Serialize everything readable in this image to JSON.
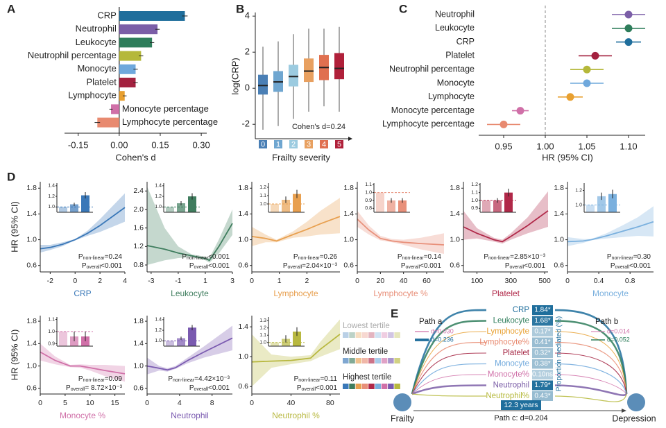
{
  "chart_data": [
    {
      "type": "hbar",
      "panel": "A",
      "xlabel": "Cohen's d",
      "categories": [
        "CRP",
        "Neutrophil",
        "Leukocyte",
        "Neutrophil percentage",
        "Monocyte",
        "Platelet",
        "Lymphocyte",
        "Monocyte percentage",
        "Lymphocyte percentage"
      ],
      "values": [
        0.24,
        0.14,
        0.12,
        0.08,
        0.06,
        0.06,
        0.02,
        -0.03,
        -0.08
      ],
      "errors": [
        0.01,
        0.008,
        0.008,
        0.008,
        0.008,
        0.008,
        0.007,
        0.006,
        0.01
      ],
      "colors": [
        "#1f6e9c",
        "#7b5ea7",
        "#2e7d5b",
        "#b5b83a",
        "#6fa8dc",
        "#a3213f",
        "#e8a030",
        "#d070a8",
        "#e88a70"
      ],
      "xlim": [
        -0.2,
        0.32
      ],
      "xticks": [
        -0.15,
        {
          "value": 0,
          "label": "0.00"
        },
        0.15,
        {
          "value": 0.3,
          "label": "0.30"
        }
      ]
    },
    {
      "type": "box",
      "panel": "B",
      "ylabel": "log(CRP)",
      "xlabel": "Frailty severity",
      "annotation": "Cohen's d=0.24",
      "categories": [
        "0",
        "1",
        "2",
        "3",
        "4",
        "5"
      ],
      "colors": [
        "#4a7fb5",
        "#6fa6d0",
        "#9ccbe0",
        "#e8a060",
        "#e07050",
        "#b0203a"
      ],
      "q1": [
        -0.35,
        -0.2,
        0.1,
        0.35,
        0.45,
        0.5
      ],
      "median": [
        0.15,
        0.35,
        0.65,
        0.95,
        1.15,
        1.1
      ],
      "q3": [
        0.75,
        0.95,
        1.3,
        1.65,
        1.85,
        1.95
      ],
      "whisker_low": [
        -2.3,
        -2.1,
        -1.7,
        -1.3,
        -1.0,
        -1.3
      ],
      "whisker_high": [
        2.3,
        2.6,
        3.0,
        3.3,
        3.3,
        3.4
      ],
      "ylim": [
        -2.8,
        4.2
      ],
      "yticks": [
        -2,
        0,
        2,
        4
      ]
    },
    {
      "type": "forest",
      "panel": "C",
      "xlabel": "HR (95% CI)",
      "categories": [
        "Neutrophil",
        "Leukocyte",
        "CRP",
        "Platelet",
        "Neutrophil percentage",
        "Monocyte",
        "Lymphocyte",
        "Monocyte percentage",
        "Lymphocyte percentage"
      ],
      "values": [
        1.1,
        1.1,
        1.1,
        1.06,
        1.05,
        1.05,
        1.03,
        0.97,
        0.95
      ],
      "lower": [
        1.08,
        1.08,
        1.085,
        1.04,
        1.03,
        1.03,
        1.015,
        0.96,
        0.93
      ],
      "upper": [
        1.12,
        1.12,
        1.115,
        1.08,
        1.07,
        1.07,
        1.045,
        0.98,
        0.97
      ],
      "colors": [
        "#7b5ea7",
        "#2e7d5b",
        "#1f6e9c",
        "#a3213f",
        "#b5b83a",
        "#6fa8dc",
        "#e8a030",
        "#d070a8",
        "#e88a70"
      ],
      "refline": 1,
      "xlim": [
        0.92,
        1.12
      ],
      "xticks": [
        0.95,
        {
          "value": 1,
          "label": "1.00"
        },
        {
          "value": 1.05,
          "label": "1.05"
        },
        {
          "value": 1.1,
          "label": "1.10"
        }
      ]
    },
    {
      "type": "spline",
      "panel": "D",
      "ylabel": "HR (95% CI)",
      "xlabel": "CRP",
      "color": "#3a78b8",
      "x": [
        -2.8,
        -2,
        -1,
        0,
        1,
        2,
        3,
        4
      ],
      "values": [
        0.86,
        0.88,
        0.93,
        1.0,
        1.1,
        1.22,
        1.36,
        1.5
      ],
      "lower": [
        0.8,
        0.84,
        0.9,
        0.99,
        1.06,
        1.12,
        1.2,
        1.28
      ],
      "upper": [
        0.92,
        0.92,
        0.96,
        1.01,
        1.14,
        1.32,
        1.52,
        1.72
      ],
      "xlim": [
        -2.8,
        4
      ],
      "xticks": [
        -2,
        0,
        2,
        4
      ],
      "ylim": [
        0.5,
        1.9
      ],
      "yticks": [
        0.6,
        {
          "value": 1,
          "label": "1.0"
        },
        1.4,
        1.8
      ],
      "p_nonlinear": "=0.24",
      "p_overall": "<0.001",
      "inset": {
        "values": [
          1.0,
          1.05,
          1.22
        ],
        "errors": [
          0,
          0.03,
          0.06
        ],
        "ylim": [
          0.9,
          1.45
        ],
        "yticks": [
          {
            "value": 1,
            "label": "1.0"
          },
          1.2,
          1.4
        ],
        "refline": 1
      }
    },
    {
      "type": "spline",
      "xlabel": "Leukocyte",
      "color": "#3f7d5e",
      "x": [
        -3.3,
        -2,
        -1,
        0,
        1,
        1.3,
        2,
        3
      ],
      "values": [
        1.22,
        1.14,
        1.06,
        1.0,
        0.94,
        0.9,
        1.2,
        1.7
      ],
      "lower": [
        0.8,
        0.9,
        0.95,
        0.97,
        0.9,
        0.85,
        1.05,
        1.45
      ],
      "upper": [
        2.5,
        1.6,
        1.2,
        1.03,
        0.98,
        0.95,
        1.35,
        2.0
      ],
      "xlim": [
        -3.3,
        3
      ],
      "xticks": [
        -3,
        -1,
        1,
        3
      ],
      "ylim": [
        0.65,
        2.6
      ],
      "yticks": [
        0.8,
        1.2,
        1.6,
        {
          "value": 2,
          "label": "2.0"
        },
        2.4
      ],
      "p_nonlinear": "<0.001",
      "p_overall": "<0.001",
      "inset": {
        "values": [
          1.0,
          1.07,
          1.2
        ],
        "errors": [
          0,
          0.04,
          0.06
        ],
        "ylim": [
          0.9,
          1.45
        ],
        "yticks": [
          {
            "value": 1,
            "label": "1.0"
          },
          1.2,
          1.4
        ],
        "refline": 1
      }
    },
    {
      "type": "spline",
      "xlabel": "Lymphocyte",
      "color": "#e8a050",
      "x": [
        0,
        0.5,
        0.9,
        1.5,
        2,
        2.5,
        3.2
      ],
      "values": [
        1.05,
        1.02,
        0.98,
        1.08,
        1.16,
        1.25,
        1.36
      ],
      "lower": [
        0.9,
        0.96,
        0.96,
        1.03,
        1.05,
        1.08,
        1.1
      ],
      "upper": [
        1.2,
        1.08,
        1.0,
        1.13,
        1.28,
        1.45,
        1.65
      ],
      "xlim": [
        0,
        3.2
      ],
      "xticks": [
        0,
        1,
        2
      ],
      "ylim": [
        0.5,
        1.9
      ],
      "yticks": [
        0.6,
        {
          "value": 1,
          "label": "1.0"
        },
        1.4,
        1.8
      ],
      "p_nonlinear": "=0.26",
      "p_overall": "=2.04×10⁻³",
      "inset": {
        "values": [
          1.0,
          1.05,
          1.12
        ],
        "errors": [
          0,
          0.04,
          0.05
        ],
        "ylim": [
          0.9,
          1.25
        ],
        "yticks": [
          {
            "value": 1,
            "label": "1.0"
          },
          1.1,
          1.2
        ],
        "refline": 1
      }
    },
    {
      "type": "spline",
      "xlabel": "Lymphocyte %",
      "color": "#e8907a",
      "x": [
        0,
        10,
        20,
        30,
        40,
        55,
        75
      ],
      "values": [
        1.32,
        1.15,
        1.02,
        0.98,
        0.96,
        0.94,
        0.92
      ],
      "lower": [
        1.2,
        1.08,
        0.99,
        0.96,
        0.92,
        0.85,
        0.78
      ],
      "upper": [
        1.45,
        1.22,
        1.06,
        1.01,
        1.0,
        1.03,
        1.1
      ],
      "xlim": [
        0,
        75
      ],
      "xticks": [
        0,
        20,
        40,
        60
      ],
      "ylim": [
        0.5,
        1.9
      ],
      "yticks": [
        0.6,
        {
          "value": 1,
          "label": "1.0"
        },
        1.4,
        1.8
      ],
      "p_nonlinear": "=0.14",
      "p_overall": "<0.001",
      "inset": {
        "values": [
          1.0,
          0.9,
          0.9
        ],
        "errors": [
          0,
          0.03,
          0.03
        ],
        "ylim": [
          0.75,
          1.12
        ],
        "yticks": [
          0.8,
          0.9,
          {
            "value": 1,
            "label": "1.0"
          },
          1.1
        ],
        "refline": 1
      }
    },
    {
      "type": "spline",
      "xlabel": "Platelet",
      "color": "#b02848",
      "x": [
        20,
        100,
        200,
        250,
        300,
        400,
        520
      ],
      "values": [
        1.2,
        1.1,
        1.0,
        0.97,
        1.05,
        1.22,
        1.45
      ],
      "lower": [
        1.0,
        1.02,
        0.97,
        0.94,
        1.0,
        1.1,
        1.2
      ],
      "upper": [
        1.45,
        1.18,
        1.03,
        1.0,
        1.1,
        1.35,
        1.75
      ],
      "xlim": [
        20,
        520
      ],
      "xticks": [
        100,
        300,
        500
      ],
      "ylim": [
        0.5,
        1.9
      ],
      "yticks": [
        0.6,
        {
          "value": 1,
          "label": "1.0"
        },
        1.4,
        1.8
      ],
      "p_nonlinear": "=2.85×10⁻³",
      "p_overall": "<0.001",
      "inset": {
        "values": [
          1.0,
          1.0,
          1.1
        ],
        "errors": [
          0,
          0.03,
          0.05
        ],
        "ylim": [
          0.85,
          1.22
        ],
        "yticks": [
          0.9,
          {
            "value": 1,
            "label": "1.0"
          },
          1.1,
          1.2
        ],
        "refline": 1
      }
    },
    {
      "type": "spline",
      "xlabel": "Monocyte",
      "color": "#7ab0de",
      "x": [
        0,
        0.2,
        0.3,
        0.5,
        0.7,
        0.9,
        1.1
      ],
      "values": [
        0.97,
        0.98,
        1.0,
        1.06,
        1.13,
        1.2,
        1.28
      ],
      "lower": [
        0.9,
        0.95,
        0.99,
        1.02,
        1.04,
        1.06,
        1.05
      ],
      "upper": [
        1.04,
        1.01,
        1.01,
        1.1,
        1.22,
        1.35,
        1.52
      ],
      "xlim": [
        0,
        1.1
      ],
      "xticks": [
        0,
        0.4,
        0.8
      ],
      "ylim": [
        0.5,
        1.9
      ],
      "yticks": [
        0.6,
        {
          "value": 1,
          "label": "1.0"
        },
        1.4,
        1.8
      ],
      "p_nonlinear": "=0.30",
      "p_overall": "<0.001",
      "inset": {
        "values": [
          1.0,
          1.12,
          1.15
        ],
        "errors": [
          0,
          0.05,
          0.06
        ],
        "ylim": [
          0.9,
          1.3
        ],
        "yticks": [
          {
            "value": 1,
            "label": "1.0"
          },
          1.2
        ],
        "refline": 1
      }
    },
    {
      "type": "spline",
      "ylabel": "HR (95% CI)",
      "xlabel": "Monocyte %",
      "color": "#d070a8",
      "x": [
        0,
        3,
        6,
        8,
        10,
        13,
        17
      ],
      "values": [
        1.25,
        1.1,
        1.0,
        1.0,
        0.97,
        0.92,
        0.86
      ],
      "lower": [
        1.1,
        1.03,
        0.98,
        0.97,
        0.92,
        0.82,
        0.72
      ],
      "upper": [
        1.4,
        1.17,
        1.02,
        1.03,
        1.02,
        1.02,
        1.0
      ],
      "xlim": [
        0,
        17
      ],
      "xticks": [
        0,
        5,
        10,
        15
      ],
      "ylim": [
        0.5,
        1.9
      ],
      "yticks": [
        0.6,
        {
          "value": 1,
          "label": "1.0"
        },
        1.4,
        1.8
      ],
      "p_nonlinear": "=0.09",
      "p_overall": "= 8.72×10⁻³",
      "inset": {
        "values": [
          1.0,
          0.96,
          0.96
        ],
        "errors": [
          0,
          0.04,
          0.04
        ],
        "ylim": [
          0.88,
          1.12
        ],
        "yticks": [
          0.9,
          {
            "value": 1,
            "label": "1.0"
          },
          1.1
        ],
        "refline": 1
      }
    },
    {
      "type": "spline",
      "xlabel": "Neutrophil",
      "color": "#7a5ab0",
      "x": [
        0,
        1.5,
        2.5,
        3.5,
        5,
        7,
        10.5
      ],
      "values": [
        1.0,
        0.96,
        0.93,
        0.97,
        1.1,
        1.25,
        1.5
      ],
      "lower": [
        0.85,
        0.92,
        0.9,
        0.95,
        1.05,
        1.15,
        1.28
      ],
      "upper": [
        1.15,
        1.0,
        0.96,
        1.0,
        1.15,
        1.35,
        1.72
      ],
      "xlim": [
        0,
        10.5
      ],
      "xticks": [
        0,
        4,
        8
      ],
      "ylim": [
        0.5,
        1.9
      ],
      "yticks": [
        0.6,
        {
          "value": 1,
          "label": "1.0"
        },
        1.4,
        1.8
      ],
      "p_nonlinear": "=4.42×10⁻³",
      "p_overall": "<0.001",
      "inset": {
        "values": [
          1.0,
          1.05,
          1.25
        ],
        "errors": [
          0,
          0.03,
          0.05
        ],
        "ylim": [
          0.9,
          1.45
        ],
        "yticks": [
          {
            "value": 1,
            "label": "1.0"
          },
          1.2,
          1.4
        ],
        "refline": 1
      }
    },
    {
      "type": "spline",
      "xlabel": "Neutrophil %",
      "color": "#b8b840",
      "x": [
        0,
        20,
        40,
        60,
        70,
        80,
        90
      ],
      "values": [
        0.93,
        0.94,
        0.95,
        0.98,
        1.1,
        1.2,
        1.3
      ],
      "lower": [
        0.6,
        0.85,
        0.9,
        0.94,
        1.0,
        1.05,
        1.1
      ],
      "upper": [
        1.3,
        1.03,
        1.0,
        1.02,
        1.2,
        1.35,
        1.5
      ],
      "xlim": [
        0,
        90
      ],
      "xticks": [
        0,
        40,
        80
      ],
      "ylim": [
        0.5,
        1.55
      ],
      "yticks": [
        0.6,
        {
          "value": 1,
          "label": "1.0"
        },
        1.4
      ],
      "p_nonlinear": "=0.11",
      "p_overall": "<0.001",
      "inset": {
        "values": [
          1.0,
          1.05,
          1.15
        ],
        "errors": [
          0,
          0.05,
          0.06
        ],
        "ylim": [
          0.95,
          1.35
        ],
        "yticks": [
          {
            "value": 1,
            "label": "1.0"
          },
          1.1,
          1.2,
          1.3
        ],
        "refline": 1
      }
    },
    {
      "type": "mediation",
      "panel": "E",
      "source": "Frailty",
      "target": "Depression",
      "duration": "12.3 years",
      "path_c": "Path c: d=0.204",
      "axis_label": "Proportion mediated (%)",
      "categories": [
        "CRP",
        "Leukocyte",
        "Lymphocyte",
        "Lymphocyte%",
        "Platelet",
        "Monocyte",
        "Monocyte%",
        "Neutrophil",
        "Neutrophil%"
      ],
      "values": [
        1.84,
        1.68,
        0.17,
        0.41,
        0.32,
        0.38,
        0.1,
        1.79,
        0.43
      ],
      "value_labels": [
        "1.84*",
        "1.68*",
        "0.17*",
        "0.41*",
        "0.32*",
        "0.38*",
        "0.10ns",
        "1.79*",
        "0.43*"
      ],
      "colors": [
        "#1f6e9c",
        "#2e7d5b",
        "#e8a030",
        "#e88a70",
        "#a3213f",
        "#6fa8dc",
        "#d070a8",
        "#7b5ea7",
        "#b5b83a"
      ],
      "path_a": {
        "label": "Path a",
        "colors": [
          "#d070a8",
          "#1f6e9c"
        ],
        "d": [
          {
            "value": 0.03,
            "label": "d=0.030"
          },
          {
            "value": 0.236,
            "label": "d=0.236"
          }
        ]
      },
      "path_b": {
        "label": "Path b",
        "colors": [
          "#d070a8",
          "#2e7d5b"
        ],
        "d": [
          {
            "value": 0.014,
            "label": "d=0.014"
          },
          {
            "value": 0.052,
            "label": "d=0.052"
          }
        ]
      }
    }
  ],
  "stat_labels": {
    "p": "P",
    "nonlinear": "non-linear",
    "overall": "overall"
  },
  "tertile_legend": [
    "Lowest tertile",
    "Middle tertile",
    "Highest tertile"
  ]
}
